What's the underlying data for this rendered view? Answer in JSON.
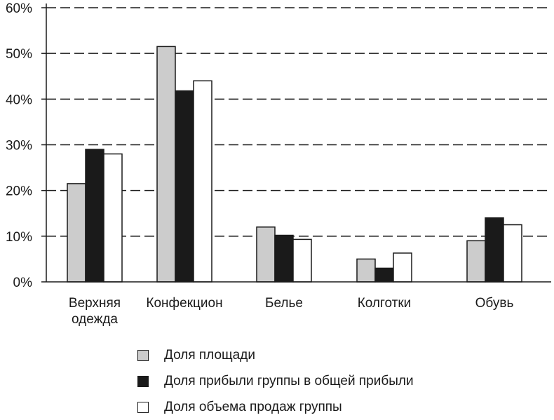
{
  "chart_data": {
    "type": "bar",
    "categories": [
      [
        "Верхняя",
        "одежда"
      ],
      [
        "Конфекцион"
      ],
      [
        "Белье"
      ],
      [
        "Колготки"
      ],
      [
        "Обувь"
      ]
    ],
    "series": [
      {
        "name": "Доля площади",
        "color": "#cccccc",
        "values": [
          21.5,
          51.5,
          12,
          5,
          9
        ]
      },
      {
        "name": "Доля прибыли группы в общей прибыли",
        "color": "#1a1a1a",
        "values": [
          29,
          41.8,
          10.2,
          3,
          14
        ]
      },
      {
        "name": "Доля объема продаж группы",
        "color": "#ffffff",
        "values": [
          28,
          44,
          9.3,
          6.3,
          12.5
        ]
      }
    ],
    "ylim": [
      0,
      60
    ],
    "yticks": [
      0,
      10,
      20,
      30,
      40,
      50,
      60
    ],
    "ytick_labels": [
      "0%",
      "10%",
      "20%",
      "30%",
      "40%",
      "50%",
      "60%"
    ],
    "grid": "horizontal dashed",
    "legend_position": "bottom",
    "title": "",
    "xlabel": "",
    "ylabel": ""
  }
}
